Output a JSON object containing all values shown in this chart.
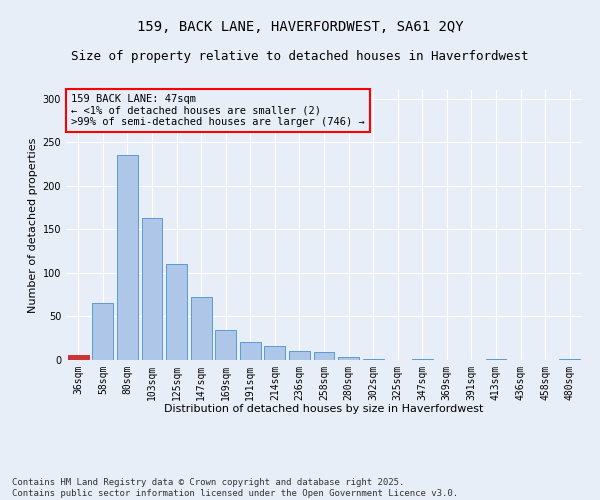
{
  "title": "159, BACK LANE, HAVERFORDWEST, SA61 2QY",
  "subtitle": "Size of property relative to detached houses in Haverfordwest",
  "xlabel": "Distribution of detached houses by size in Haverfordwest",
  "ylabel": "Number of detached properties",
  "categories": [
    "36sqm",
    "58sqm",
    "80sqm",
    "103sqm",
    "125sqm",
    "147sqm",
    "169sqm",
    "191sqm",
    "214sqm",
    "236sqm",
    "258sqm",
    "280sqm",
    "302sqm",
    "325sqm",
    "347sqm",
    "369sqm",
    "391sqm",
    "413sqm",
    "436sqm",
    "458sqm",
    "480sqm"
  ],
  "values": [
    6,
    65,
    235,
    163,
    110,
    72,
    35,
    21,
    16,
    10,
    9,
    3,
    1,
    0,
    1,
    0,
    0,
    1,
    0,
    0,
    1
  ],
  "bar_color": "#aec6e8",
  "bar_edge_color": "#5b9bd5",
  "highlight_bar_index": 0,
  "highlight_color": "#cc3333",
  "background_color": "#e8eef8",
  "ylim": [
    0,
    310
  ],
  "yticks": [
    0,
    50,
    100,
    150,
    200,
    250,
    300
  ],
  "annotation_text": "159 BACK LANE: 47sqm\n← <1% of detached houses are smaller (2)\n>99% of semi-detached houses are larger (746) →",
  "footer_text": "Contains HM Land Registry data © Crown copyright and database right 2025.\nContains public sector information licensed under the Open Government Licence v3.0.",
  "title_fontsize": 10,
  "subtitle_fontsize": 9,
  "xlabel_fontsize": 8,
  "ylabel_fontsize": 8,
  "tick_fontsize": 7,
  "annotation_fontsize": 7.5,
  "footer_fontsize": 6.5
}
